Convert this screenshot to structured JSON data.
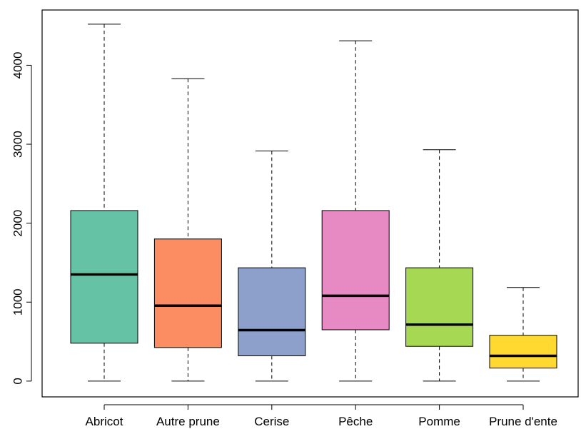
{
  "chart_data": {
    "type": "boxplot",
    "title": "",
    "xlabel": "",
    "ylabel": "",
    "ylim": [
      -200,
      4700
    ],
    "y_ticks": [
      0,
      1000,
      2000,
      3000,
      4000
    ],
    "y_tick_labels": [
      "0",
      "1000",
      "2000",
      "3000",
      "4000"
    ],
    "grid": false,
    "legend": "none",
    "categories": [
      "Abricot",
      "Autre prune",
      "Cerise",
      "Pêche",
      "Pomme",
      "Prune d'ente"
    ],
    "boxes": [
      {
        "category": "Abricot",
        "whisker_low": 0,
        "q1": 480,
        "median": 1350,
        "q3": 2160,
        "whisker_high": 4520,
        "color": "#66c2a5"
      },
      {
        "category": "Autre prune",
        "whisker_low": 0,
        "q1": 425,
        "median": 955,
        "q3": 1800,
        "whisker_high": 3830,
        "color": "#fc8d62"
      },
      {
        "category": "Cerise",
        "whisker_low": 0,
        "q1": 320,
        "median": 645,
        "q3": 1435,
        "whisker_high": 2915,
        "color": "#8da0cb"
      },
      {
        "category": "Pêche",
        "whisker_low": 0,
        "q1": 650,
        "median": 1080,
        "q3": 2160,
        "whisker_high": 4310,
        "color": "#e78ac3"
      },
      {
        "category": "Pomme",
        "whisker_low": 0,
        "q1": 440,
        "median": 715,
        "q3": 1435,
        "whisker_high": 2930,
        "color": "#a6d854"
      },
      {
        "category": "Prune d'ente",
        "whisker_low": 0,
        "q1": 165,
        "median": 320,
        "q3": 580,
        "whisker_high": 1185,
        "color": "#ffd92f"
      }
    ]
  }
}
